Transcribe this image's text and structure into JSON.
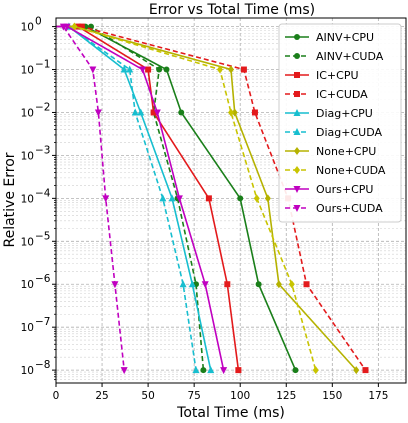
{
  "chart_data": {
    "type": "line",
    "title": "Error vs Total Time (ms)",
    "xlabel": "Total Time (ms)",
    "ylabel": "Relative Error",
    "xlim": [
      0,
      190
    ],
    "ylim_log10": [
      -8.3,
      0.2
    ],
    "y_scale": "log",
    "grid": true,
    "legend_position": "top-right",
    "x_ticks": [
      "0",
      "25",
      "50",
      "75",
      "100",
      "125",
      "150",
      "175"
    ],
    "x_tick_values": [
      0,
      25,
      50,
      75,
      100,
      125,
      150,
      175
    ],
    "y_tick_exponents": [
      0,
      -1,
      -2,
      -3,
      -4,
      -5,
      -6,
      -7,
      -8
    ],
    "y_tick_labels": [
      "10",
      "10",
      "10",
      "10",
      "10",
      "10",
      "10",
      "10",
      "10"
    ],
    "y_tick_sup": [
      "0",
      "−1",
      "−2",
      "−3",
      "−4",
      "−5",
      "−6",
      "−7",
      "−8"
    ],
    "series": [
      {
        "name": "AINV+CPU",
        "color": "#1a7f1a",
        "dash": false,
        "marker": "circle",
        "x": [
          0,
          16,
          60,
          68,
          100,
          110,
          130
        ],
        "y": [
          1,
          1,
          0.1,
          0.01,
          0.0001,
          1e-06,
          1e-08
        ]
      },
      {
        "name": "AINV+CUDA",
        "color": "#1a7f1a",
        "dash": true,
        "marker": "circle",
        "x": [
          0,
          19,
          56,
          53,
          66,
          76,
          80
        ],
        "y": [
          1,
          1,
          0.1,
          0.01,
          0.0001,
          1e-06,
          1e-08
        ]
      },
      {
        "name": "IC+CPU",
        "color": "#e31a1c",
        "dash": false,
        "marker": "square",
        "x": [
          0,
          12,
          50,
          53,
          83,
          93,
          99
        ],
        "y": [
          1,
          1,
          0.1,
          0.01,
          0.0001,
          1e-06,
          1e-08
        ]
      },
      {
        "name": "IC+CUDA",
        "color": "#e31a1c",
        "dash": true,
        "marker": "square",
        "x": [
          0,
          14,
          102,
          108,
          126,
          136,
          168
        ],
        "y": [
          1,
          1,
          0.1,
          0.01,
          0.0001,
          1e-06,
          1e-08
        ]
      },
      {
        "name": "Diag+CPU",
        "color": "#17becf",
        "dash": false,
        "marker": "triangle-up",
        "x": [
          0,
          7,
          37,
          46,
          63,
          74,
          84
        ],
        "y": [
          1,
          1,
          0.1,
          0.01,
          0.0001,
          1e-06,
          1e-08
        ]
      },
      {
        "name": "Diag+CUDA",
        "color": "#17becf",
        "dash": true,
        "marker": "triangle-up",
        "x": [
          0,
          7,
          40,
          43,
          58,
          69,
          76
        ],
        "y": [
          1,
          1,
          0.1,
          0.01,
          0.0001,
          1e-06,
          1e-08
        ]
      },
      {
        "name": "None+CPU",
        "color": "#b5b200",
        "dash": false,
        "marker": "diamond",
        "x": [
          0,
          10,
          95,
          97,
          115,
          121,
          163
        ],
        "y": [
          1,
          1,
          0.1,
          0.01,
          0.0001,
          1e-06,
          1e-08
        ]
      },
      {
        "name": "None+CUDA",
        "color": "#c8c400",
        "dash": true,
        "marker": "diamond",
        "x": [
          0,
          10,
          89,
          95,
          109,
          128,
          141
        ],
        "y": [
          1,
          1,
          0.1,
          0.01,
          0.0001,
          1e-06,
          1e-08
        ]
      },
      {
        "name": "Ours+CPU",
        "color": "#c000c0",
        "dash": false,
        "marker": "triangle-down",
        "x": [
          0,
          6,
          47,
          55,
          67,
          81,
          91
        ],
        "y": [
          1,
          1,
          0.1,
          0.01,
          0.0001,
          1e-06,
          1e-08
        ]
      },
      {
        "name": "Ours+CUDA",
        "color": "#c000c0",
        "dash": true,
        "marker": "triangle-down",
        "x": [
          0,
          4,
          20,
          23,
          27,
          32,
          37
        ],
        "y": [
          1,
          1,
          0.1,
          0.01,
          0.0001,
          1e-06,
          1e-08
        ]
      }
    ]
  }
}
